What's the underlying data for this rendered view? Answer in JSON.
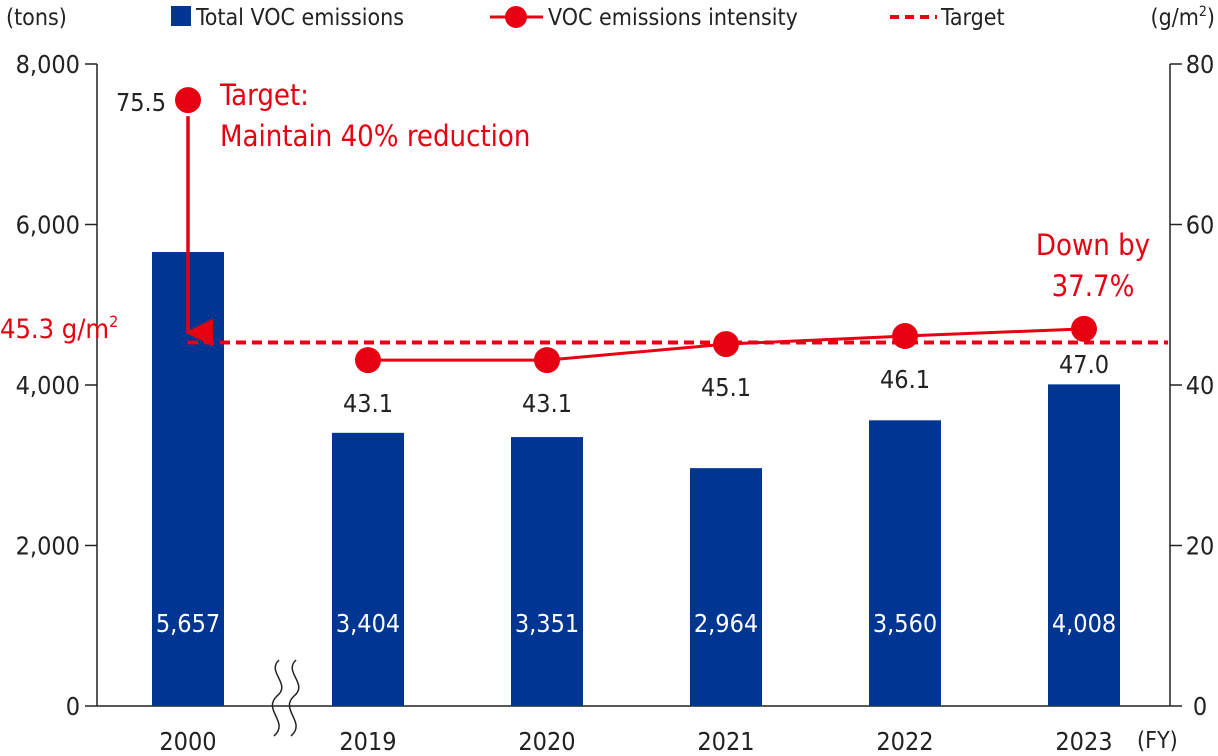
{
  "chart_data": {
    "type": "bar",
    "categories": [
      "2000",
      "2019",
      "2020",
      "2021",
      "2022",
      "2023"
    ],
    "x_unit": "(FY)",
    "left_axis": {
      "unit": "(tons)",
      "min": 0,
      "max": 8000,
      "ticks": [
        "0",
        "2,000",
        "4,000",
        "6,000",
        "8,000"
      ],
      "tick_values": [
        0,
        2000,
        4000,
        6000,
        8000
      ]
    },
    "right_axis": {
      "unit_prefix": "(g/m",
      "unit_sup": "2",
      "unit_suffix": ")",
      "min": 0,
      "max": 80,
      "ticks": [
        "0",
        "20",
        "40",
        "60",
        "80"
      ],
      "tick_values": [
        0,
        20,
        40,
        60,
        80
      ]
    },
    "series": [
      {
        "name": "Total VOC emissions",
        "kind": "bar",
        "axis": "left",
        "color": "#003591",
        "values": [
          5657,
          3404,
          3351,
          2964,
          3560,
          4008
        ],
        "labels": [
          "5,657",
          "3,404",
          "3,351",
          "2,964",
          "3,560",
          "4,008"
        ]
      },
      {
        "name": "VOC emissions intensity",
        "kind": "line",
        "axis": "right",
        "color": "#e60012",
        "values": [
          75.5,
          43.1,
          43.1,
          45.1,
          46.1,
          47.0
        ],
        "labels": [
          "75.5",
          "43.1",
          "43.1",
          "45.1",
          "46.1",
          "47.0"
        ]
      },
      {
        "name": "Target",
        "kind": "dashed-line",
        "axis": "right",
        "color": "#e60012",
        "value": 45.3
      }
    ],
    "annotations": {
      "target_value_prefix": "45.3 g/m",
      "target_value_sup": "2",
      "target_note_line1": "Target:",
      "target_note_line2": "Maintain 40% reduction",
      "down_line1": "Down by",
      "down_line2": "37.7%"
    },
    "axis_break_after": "2000",
    "grid": false,
    "legend_position": "top"
  }
}
